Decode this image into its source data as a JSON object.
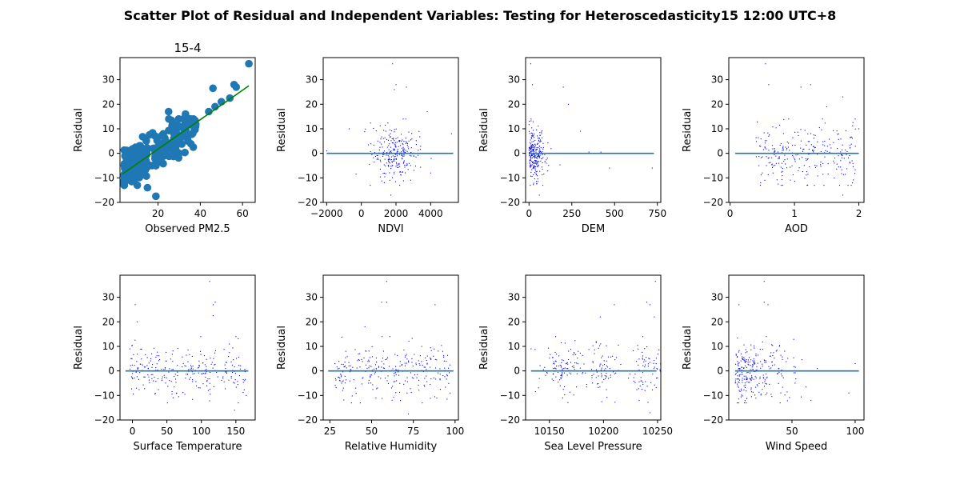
{
  "figure": {
    "title": "Scatter Plot of Residual and Independent Variables: Testing for Heteroscedasticity15 12:00 UTC+8"
  },
  "colors": {
    "point_large": "#1f77b4",
    "point_small": "#0000ff",
    "fit_line": "#008000",
    "zero_line": "#1f77b4",
    "axis": "#000000"
  },
  "chart_data": [
    {
      "type": "scatter",
      "title": "15-4",
      "xlabel": "Observed PM2.5",
      "ylabel": "Residual",
      "xlim": [
        2,
        66
      ],
      "ylim": [
        -20,
        39
      ],
      "xticks": [
        20,
        40,
        60
      ],
      "yticks": [
        -20,
        -10,
        0,
        10,
        20,
        30
      ],
      "marker": "large",
      "reference_line": {
        "type": "fit",
        "from": [
          3,
          -8.5
        ],
        "to": [
          63,
          27.5
        ],
        "color": "#008000"
      },
      "notable_points": [
        [
          63,
          36.5
        ],
        [
          56,
          28
        ],
        [
          57,
          27
        ],
        [
          46,
          26.5
        ],
        [
          54,
          22.5
        ],
        [
          50,
          21
        ],
        [
          47,
          19
        ],
        [
          44,
          17
        ],
        [
          19,
          -17.5
        ],
        [
          15,
          -14
        ],
        [
          3,
          -12
        ],
        [
          30,
          0
        ],
        [
          25,
          17
        ],
        [
          33,
          16
        ]
      ]
    },
    {
      "type": "scatter",
      "title": "",
      "xlabel": "NDVI",
      "ylabel": "Residual",
      "xlim": [
        -2200,
        5600
      ],
      "ylim": [
        -20,
        39
      ],
      "xticks": [
        -2000,
        0,
        2000,
        4000
      ],
      "yticks": [
        -20,
        -10,
        0,
        10,
        20,
        30
      ],
      "marker": "small",
      "reference_line": {
        "type": "zero",
        "from": [
          -2000,
          0
        ],
        "to": [
          5300,
          0
        ]
      },
      "notable_points": [
        [
          1800,
          36.5
        ],
        [
          2000,
          28
        ],
        [
          2600,
          27
        ],
        [
          1900,
          26
        ],
        [
          5200,
          8
        ],
        [
          -2000,
          1
        ],
        [
          -700,
          10
        ],
        [
          3800,
          17
        ],
        [
          4000,
          -8
        ],
        [
          1700,
          -17
        ]
      ]
    },
    {
      "type": "scatter",
      "title": "",
      "xlabel": "DEM",
      "ylabel": "Residual",
      "xlim": [
        -20,
        770
      ],
      "ylim": [
        -20,
        39
      ],
      "xticks": [
        0,
        250,
        500,
        750
      ],
      "yticks": [
        -20,
        -10,
        0,
        10,
        20,
        30
      ],
      "marker": "small",
      "reference_line": {
        "type": "zero",
        "from": [
          0,
          0
        ],
        "to": [
          730,
          0
        ]
      },
      "notable_points": [
        [
          10,
          36.5
        ],
        [
          20,
          28
        ],
        [
          200,
          27
        ],
        [
          230,
          20
        ],
        [
          350,
          0.5
        ],
        [
          420,
          0.5
        ],
        [
          470,
          -6
        ],
        [
          720,
          -6
        ],
        [
          300,
          9
        ],
        [
          60,
          -17
        ]
      ]
    },
    {
      "type": "scatter",
      "title": "",
      "xlabel": "AOD",
      "ylabel": "Residual",
      "xlim": [
        -0.02,
        2.08
      ],
      "ylim": [
        -20,
        39
      ],
      "xticks": [
        0,
        1,
        2
      ],
      "yticks": [
        -20,
        -10,
        0,
        10,
        20,
        30
      ],
      "marker": "small",
      "reference_line": {
        "type": "zero",
        "from": [
          0.08,
          0
        ],
        "to": [
          2,
          0
        ]
      },
      "notable_points": [
        [
          0.55,
          36.5
        ],
        [
          0.6,
          28
        ],
        [
          1.1,
          27
        ],
        [
          1.25,
          28
        ],
        [
          1.75,
          23
        ],
        [
          1.9,
          -12
        ],
        [
          1.75,
          -17
        ],
        [
          0.5,
          -8
        ],
        [
          1.5,
          19
        ],
        [
          2.0,
          10
        ]
      ]
    },
    {
      "type": "scatter",
      "title": "",
      "xlabel": "Surface Temperature",
      "ylabel": "Residual",
      "xlim": [
        -18,
        178
      ],
      "ylim": [
        -20,
        39
      ],
      "xticks": [
        0,
        50,
        100,
        150
      ],
      "yticks": [
        -20,
        -10,
        0,
        10,
        20,
        30
      ],
      "marker": "small",
      "reference_line": {
        "type": "zero",
        "from": [
          -10,
          0
        ],
        "to": [
          168,
          0
        ]
      },
      "notable_points": [
        [
          112,
          36.5
        ],
        [
          120,
          28
        ],
        [
          117,
          27
        ],
        [
          117,
          22.5
        ],
        [
          4,
          27
        ],
        [
          7,
          20
        ],
        [
          165,
          -10
        ],
        [
          148,
          -16
        ],
        [
          150,
          14
        ],
        [
          -2,
          5
        ]
      ]
    },
    {
      "type": "scatter",
      "title": "",
      "xlabel": "Relative Humidity",
      "ylabel": "Residual",
      "xlim": [
        21,
        102
      ],
      "ylim": [
        -20,
        39
      ],
      "xticks": [
        25,
        50,
        75,
        100
      ],
      "yticks": [
        -20,
        -10,
        0,
        10,
        20,
        30
      ],
      "marker": "small",
      "reference_line": {
        "type": "zero",
        "from": [
          24,
          0
        ],
        "to": [
          99,
          0
        ]
      },
      "notable_points": [
        [
          59,
          36.5
        ],
        [
          56,
          28
        ],
        [
          59,
          28
        ],
        [
          88,
          27
        ],
        [
          72,
          -17.5
        ],
        [
          97,
          -9
        ],
        [
          28,
          3
        ],
        [
          46,
          18
        ],
        [
          80,
          10
        ],
        [
          33,
          -4
        ]
      ]
    },
    {
      "type": "scatter",
      "title": "",
      "xlabel": "Sea Level Pressure",
      "ylabel": "Residual",
      "xlim": [
        10128,
        10253
      ],
      "ylim": [
        -20,
        39
      ],
      "xticks": [
        10150,
        10200,
        10250
      ],
      "yticks": [
        -20,
        -10,
        0,
        10,
        20,
        30
      ],
      "marker": "small",
      "reference_line": {
        "type": "zero",
        "from": [
          10133,
          0
        ],
        "to": [
          10249,
          0
        ]
      },
      "notable_points": [
        [
          10248,
          36.5
        ],
        [
          10240,
          28
        ],
        [
          10243,
          27
        ],
        [
          10247,
          22
        ],
        [
          10210,
          27
        ],
        [
          10197,
          22
        ],
        [
          10133,
          9
        ],
        [
          10233,
          -12
        ],
        [
          10243,
          -17
        ],
        [
          10160,
          -6
        ]
      ]
    },
    {
      "type": "scatter",
      "title": "",
      "xlabel": "Wind Speed",
      "ylabel": "Residual",
      "xlim": [
        0,
        107
      ],
      "ylim": [
        -20,
        39
      ],
      "xticks": [
        50,
        100
      ],
      "yticks": [
        -20,
        -10,
        0,
        10,
        20,
        30
      ],
      "marker": "small",
      "reference_line": {
        "type": "zero",
        "from": [
          5,
          0
        ],
        "to": [
          103,
          0
        ]
      },
      "notable_points": [
        [
          28,
          36.5
        ],
        [
          28,
          28
        ],
        [
          31,
          27
        ],
        [
          8,
          27
        ],
        [
          100,
          3
        ],
        [
          95,
          -9
        ],
        [
          65,
          -12
        ],
        [
          70,
          1
        ],
        [
          40,
          10
        ],
        [
          10,
          -8
        ]
      ]
    }
  ]
}
